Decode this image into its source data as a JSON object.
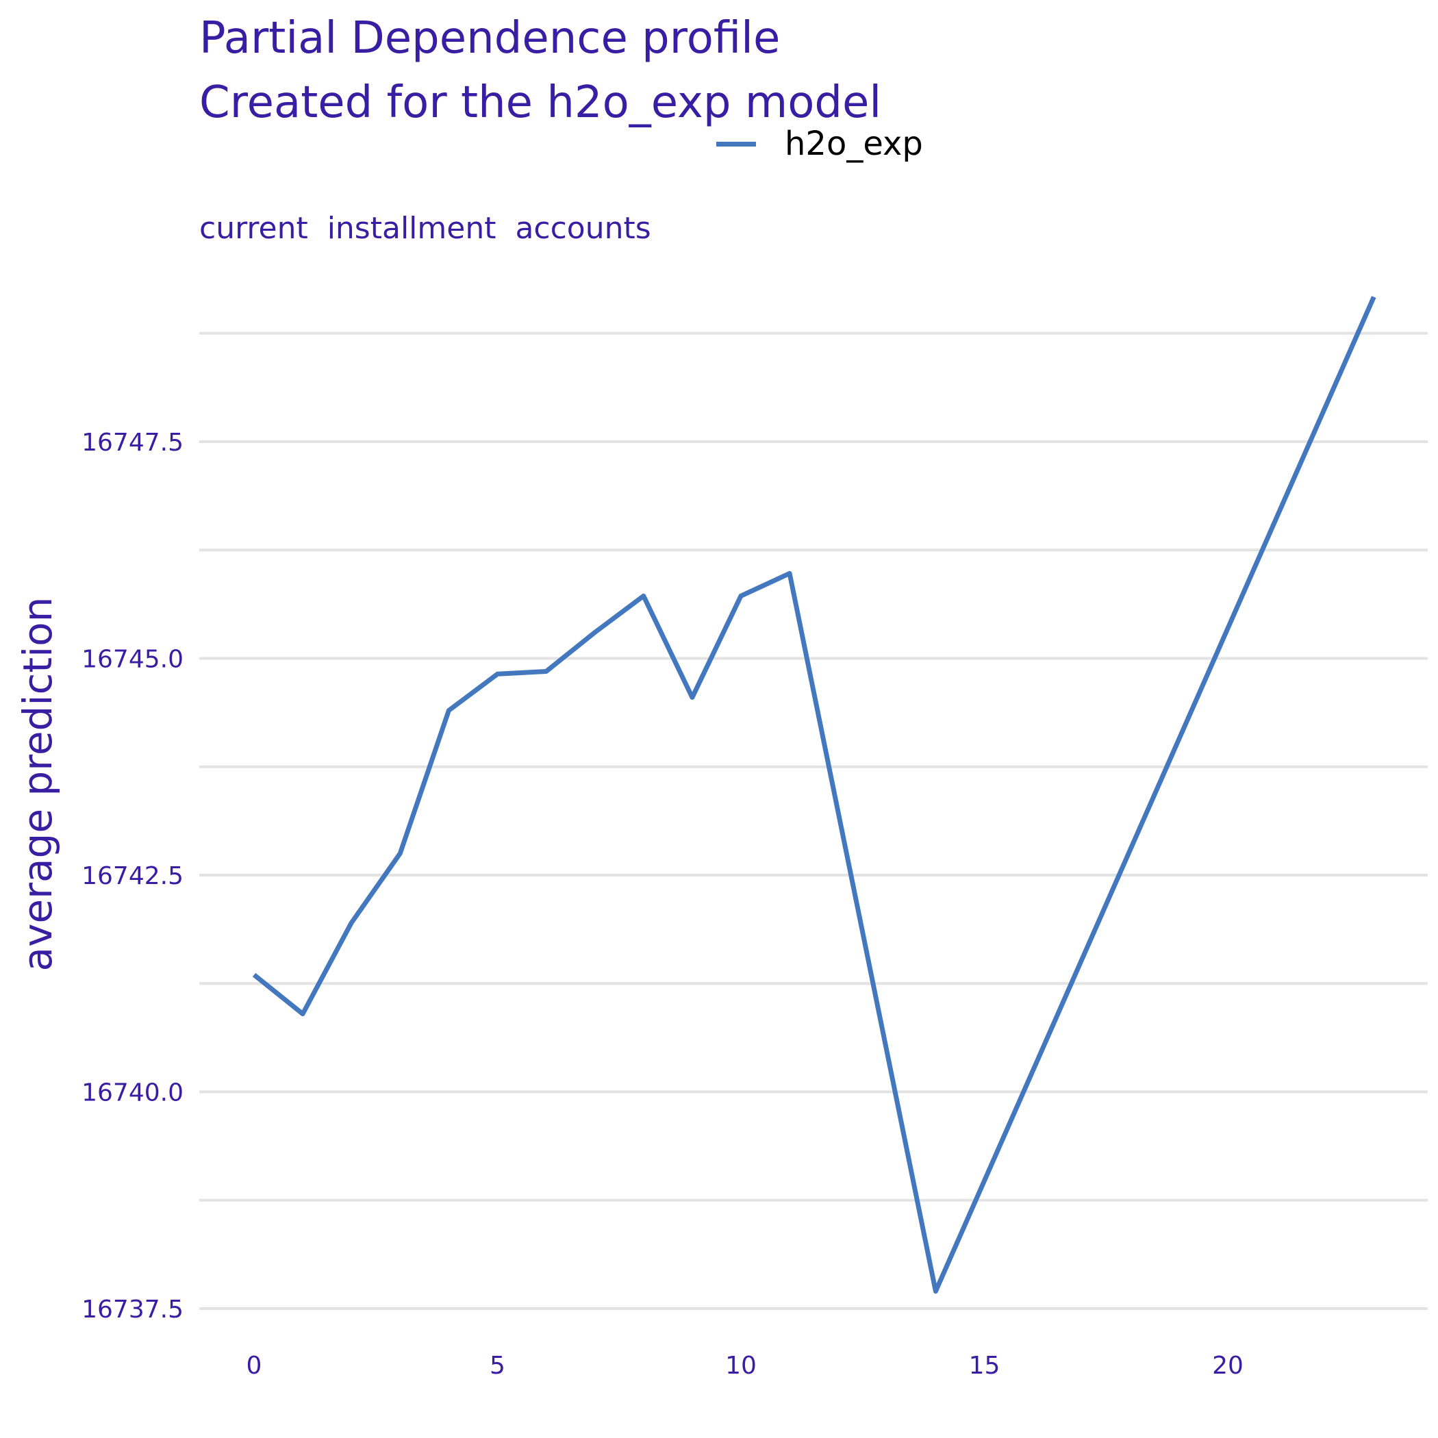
{
  "chart_data": {
    "type": "line",
    "title": "Partial Dependence profile",
    "subtitle": "Created for the h2o_exp model",
    "facet_label": "current  installment  accounts",
    "xlabel": "",
    "ylabel": "average prediction",
    "xlim": [
      -0.5,
      23.5
    ],
    "ylim": [
      16737.4,
      16749.4
    ],
    "x_ticks": [
      0,
      5,
      10,
      15,
      20
    ],
    "y_ticks": [
      16737.5,
      16740.0,
      16742.5,
      16745.0,
      16747.5
    ],
    "y_tick_labels": [
      "16737.5",
      "16740.0",
      "16742.5",
      "16745.0",
      "16747.5"
    ],
    "grid": "horizontal",
    "legend_position": "top",
    "colors": {
      "line": "#4378bf",
      "text": "#371ea3",
      "grid": "#e3e3e3"
    },
    "series": [
      {
        "name": "h2o_exp",
        "x": [
          0,
          1,
          2,
          3,
          4,
          5,
          6,
          7,
          8,
          9,
          10,
          11,
          14,
          23
        ],
        "y": [
          16741.35,
          16740.9,
          16741.95,
          16742.75,
          16744.4,
          16744.82,
          16744.85,
          16745.3,
          16745.72,
          16744.55,
          16745.72,
          16745.98,
          16737.7,
          16749.17
        ]
      }
    ]
  }
}
